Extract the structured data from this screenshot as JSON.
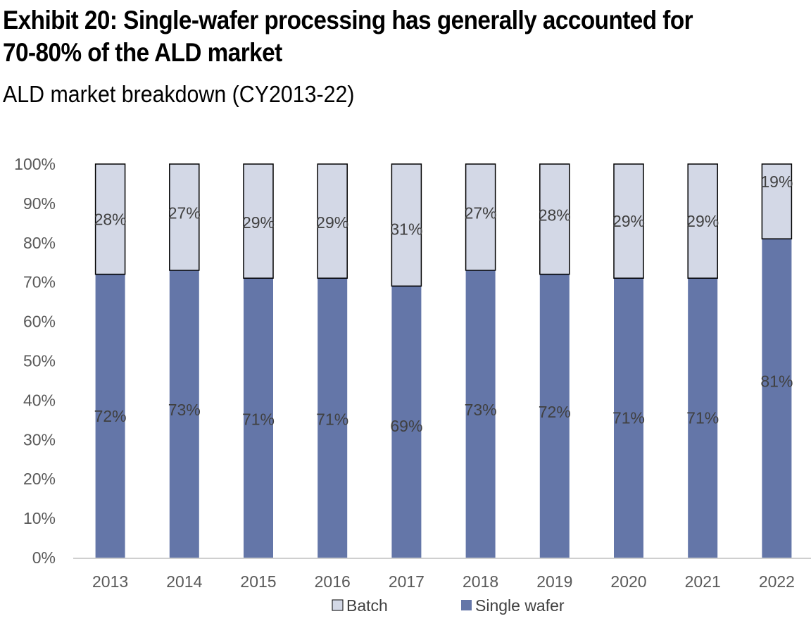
{
  "header": {
    "title": "Exhibit 20: Single-wafer processing has generally accounted for 70-80% of the ALD market",
    "subtitle": "ALD market breakdown (CY2013-22)"
  },
  "chart_data": {
    "type": "bar",
    "stacked": true,
    "categories": [
      "2013",
      "2014",
      "2015",
      "2016",
      "2017",
      "2018",
      "2019",
      "2020",
      "2021",
      "2022"
    ],
    "series": [
      {
        "name": "Single wafer",
        "values": [
          72,
          73,
          71,
          71,
          69,
          73,
          72,
          71,
          71,
          81
        ],
        "color": "#6476A8"
      },
      {
        "name": "Batch",
        "values": [
          28,
          27,
          29,
          29,
          31,
          27,
          28,
          29,
          29,
          19
        ],
        "color": "#D3D8E6"
      }
    ],
    "data_labels": {
      "Single wafer": [
        "72%",
        "73%",
        "71%",
        "71%",
        "69%",
        "73%",
        "72%",
        "71%",
        "71%",
        "81%"
      ],
      "Batch": [
        "28%",
        "27%",
        "29%",
        "29%",
        "31%",
        "27%",
        "28%",
        "29%",
        "29%",
        "19%"
      ]
    },
    "y_ticks": [
      "0%",
      "10%",
      "20%",
      "30%",
      "40%",
      "50%",
      "60%",
      "70%",
      "80%",
      "90%",
      "100%"
    ],
    "ylim": [
      0,
      100
    ],
    "grid": false,
    "legend": {
      "position": "bottom",
      "entries": [
        "Batch",
        "Single wafer"
      ]
    }
  }
}
